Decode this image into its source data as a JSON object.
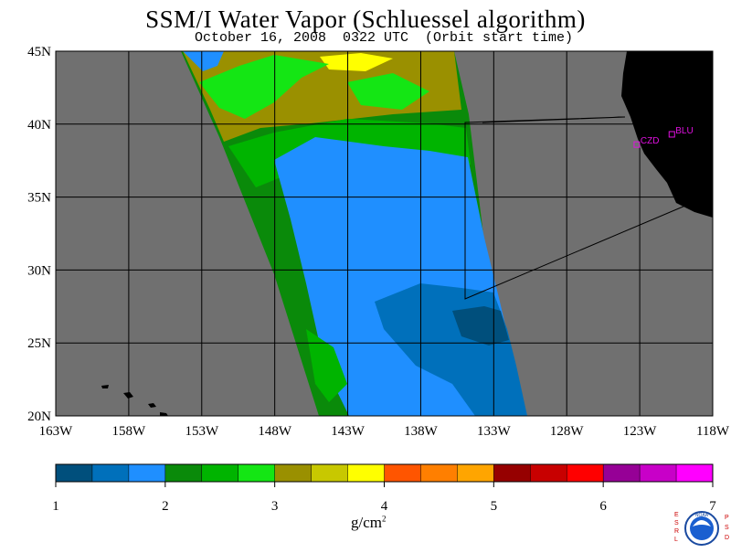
{
  "title": "SSM/I Water Vapor (Schluessel algorithm)",
  "subtitle": "October 16, 2008  0322 UTC  (Orbit start time)",
  "map": {
    "lat_labels": [
      "45N",
      "40N",
      "35N",
      "30N",
      "25N",
      "20N"
    ],
    "lon_labels": [
      "163W",
      "158W",
      "153W",
      "148W",
      "143W",
      "138W",
      "133W",
      "128W",
      "123W",
      "118W"
    ],
    "lat_range": [
      20,
      45
    ],
    "lon_range": [
      -163,
      -118
    ],
    "no_data_color": "#707070",
    "land_color": "#000000",
    "grid_color": "#000000",
    "stations": [
      {
        "name": "CZD",
        "lat": 38.6,
        "lon": -123.2
      },
      {
        "name": "BLU",
        "lat": 39.3,
        "lon": -120.8
      }
    ]
  },
  "colorbar": {
    "ticks": [
      "1",
      "2",
      "3",
      "4",
      "5",
      "6",
      "7"
    ],
    "units": "g/cm",
    "units_sup": "2",
    "range": [
      1,
      7
    ],
    "colors": [
      "#004f7c",
      "#0070bb",
      "#1f8fff",
      "#0a8a0a",
      "#00b400",
      "#14e614",
      "#9a9000",
      "#c8c800",
      "#ffff00",
      "#ff5500",
      "#ff7f00",
      "#ffa500",
      "#960000",
      "#c80000",
      "#ff0000",
      "#960096",
      "#c800c8",
      "#ff00ff"
    ]
  },
  "branding": {
    "left_letters": "ESRL",
    "right_letters": "PSD",
    "logo_text": "NOAA"
  }
}
